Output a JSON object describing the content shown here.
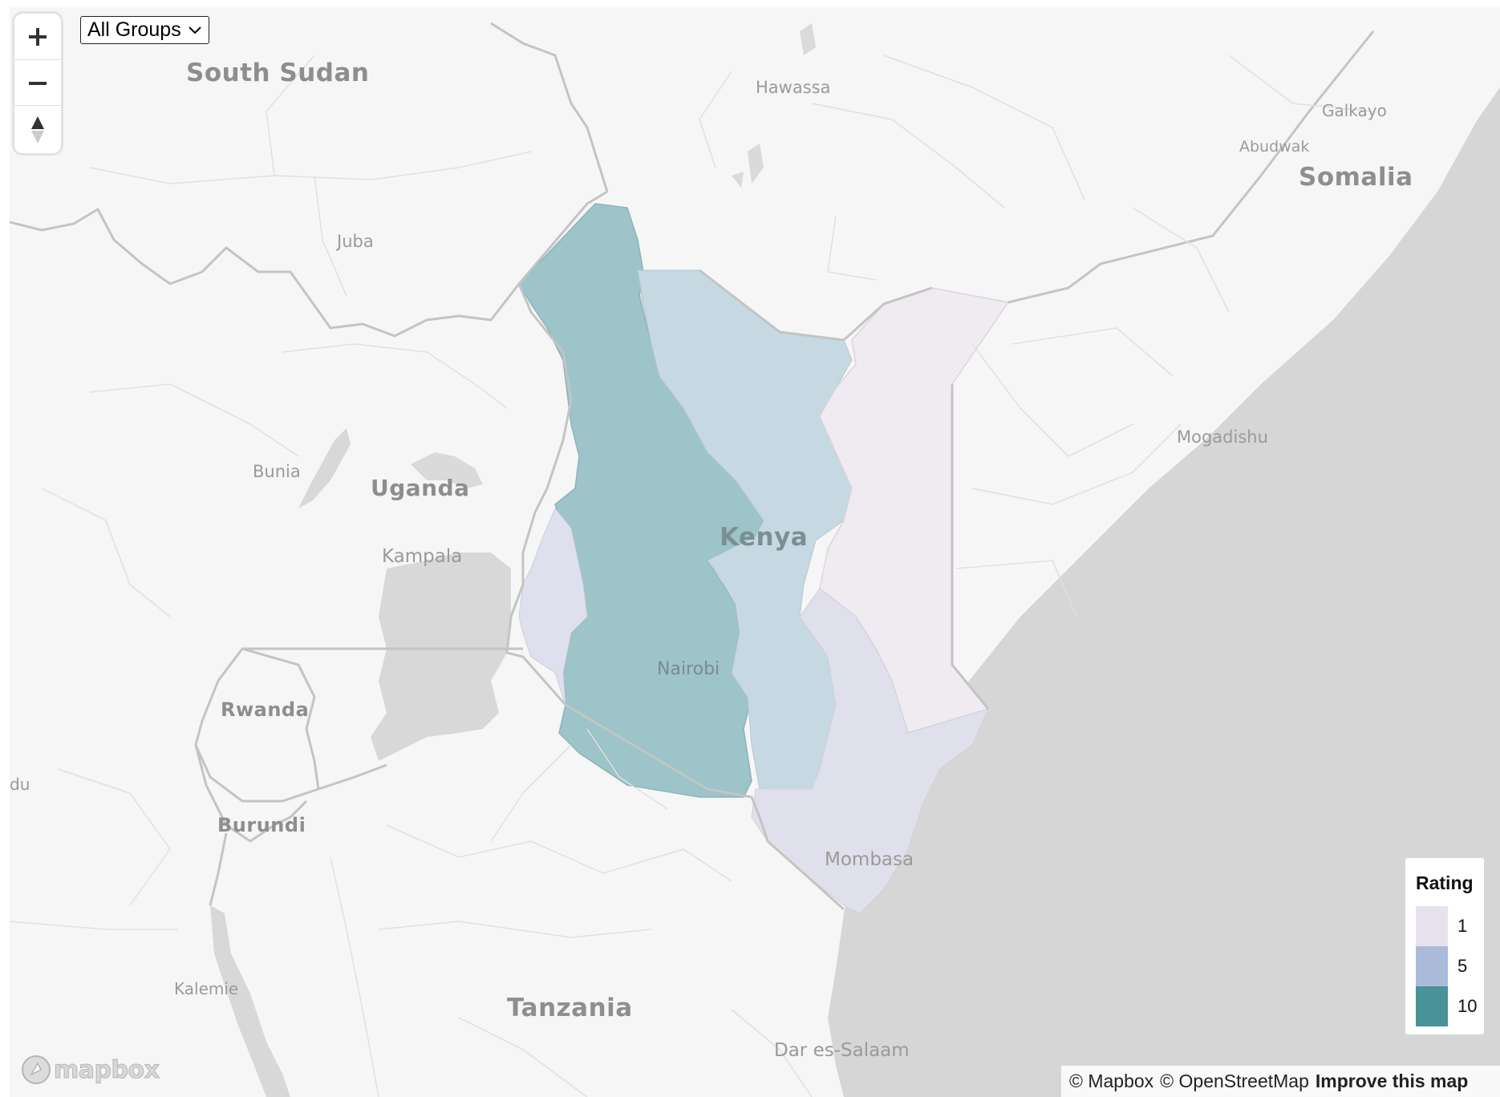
{
  "map": {
    "labels": {
      "south_sudan": "South Sudan",
      "hawassa": "Hawassa",
      "galkayo": "Galkayo",
      "abudwak": "Abudwak",
      "somalia": "Somalia",
      "juba": "Juba",
      "mogadishu": "Mogadishu",
      "bunia": "Bunia",
      "uganda": "Uganda",
      "kenya": "Kenya",
      "kampala": "Kampala",
      "nairobi": "Nairobi",
      "rwanda": "Rwanda",
      "du": "du",
      "burundi": "Burundi",
      "mombasa": "Mombasa",
      "kalemie": "Kalemie",
      "tanzania": "Tanzania",
      "dar_es_salaam": "Dar es-Salaam"
    },
    "region_colors": {
      "rating_1": "#efe9f2",
      "rating_3": "#dcdde9",
      "rating_5": "#c3d6e0",
      "rating_10": "#9cc4c9",
      "water": "#d4d4d4",
      "land": "#f6f6f6"
    }
  },
  "controls": {
    "zoom_in_icon": "plus-icon",
    "zoom_out_icon": "minus-icon",
    "compass_icon": "compass-icon",
    "group_select": {
      "value": "All Groups",
      "options": [
        "All Groups"
      ]
    }
  },
  "legend": {
    "title": "Rating",
    "items": [
      {
        "value": "1",
        "color": "#e8e2ee"
      },
      {
        "value": "5",
        "color": "#a9bbd8"
      },
      {
        "value": "10",
        "color": "#4a9198"
      }
    ]
  },
  "attribution": {
    "mapbox": "© Mapbox",
    "osm": "© OpenStreetMap",
    "improve": "Improve this map"
  },
  "logo": {
    "text": "mapbox"
  }
}
